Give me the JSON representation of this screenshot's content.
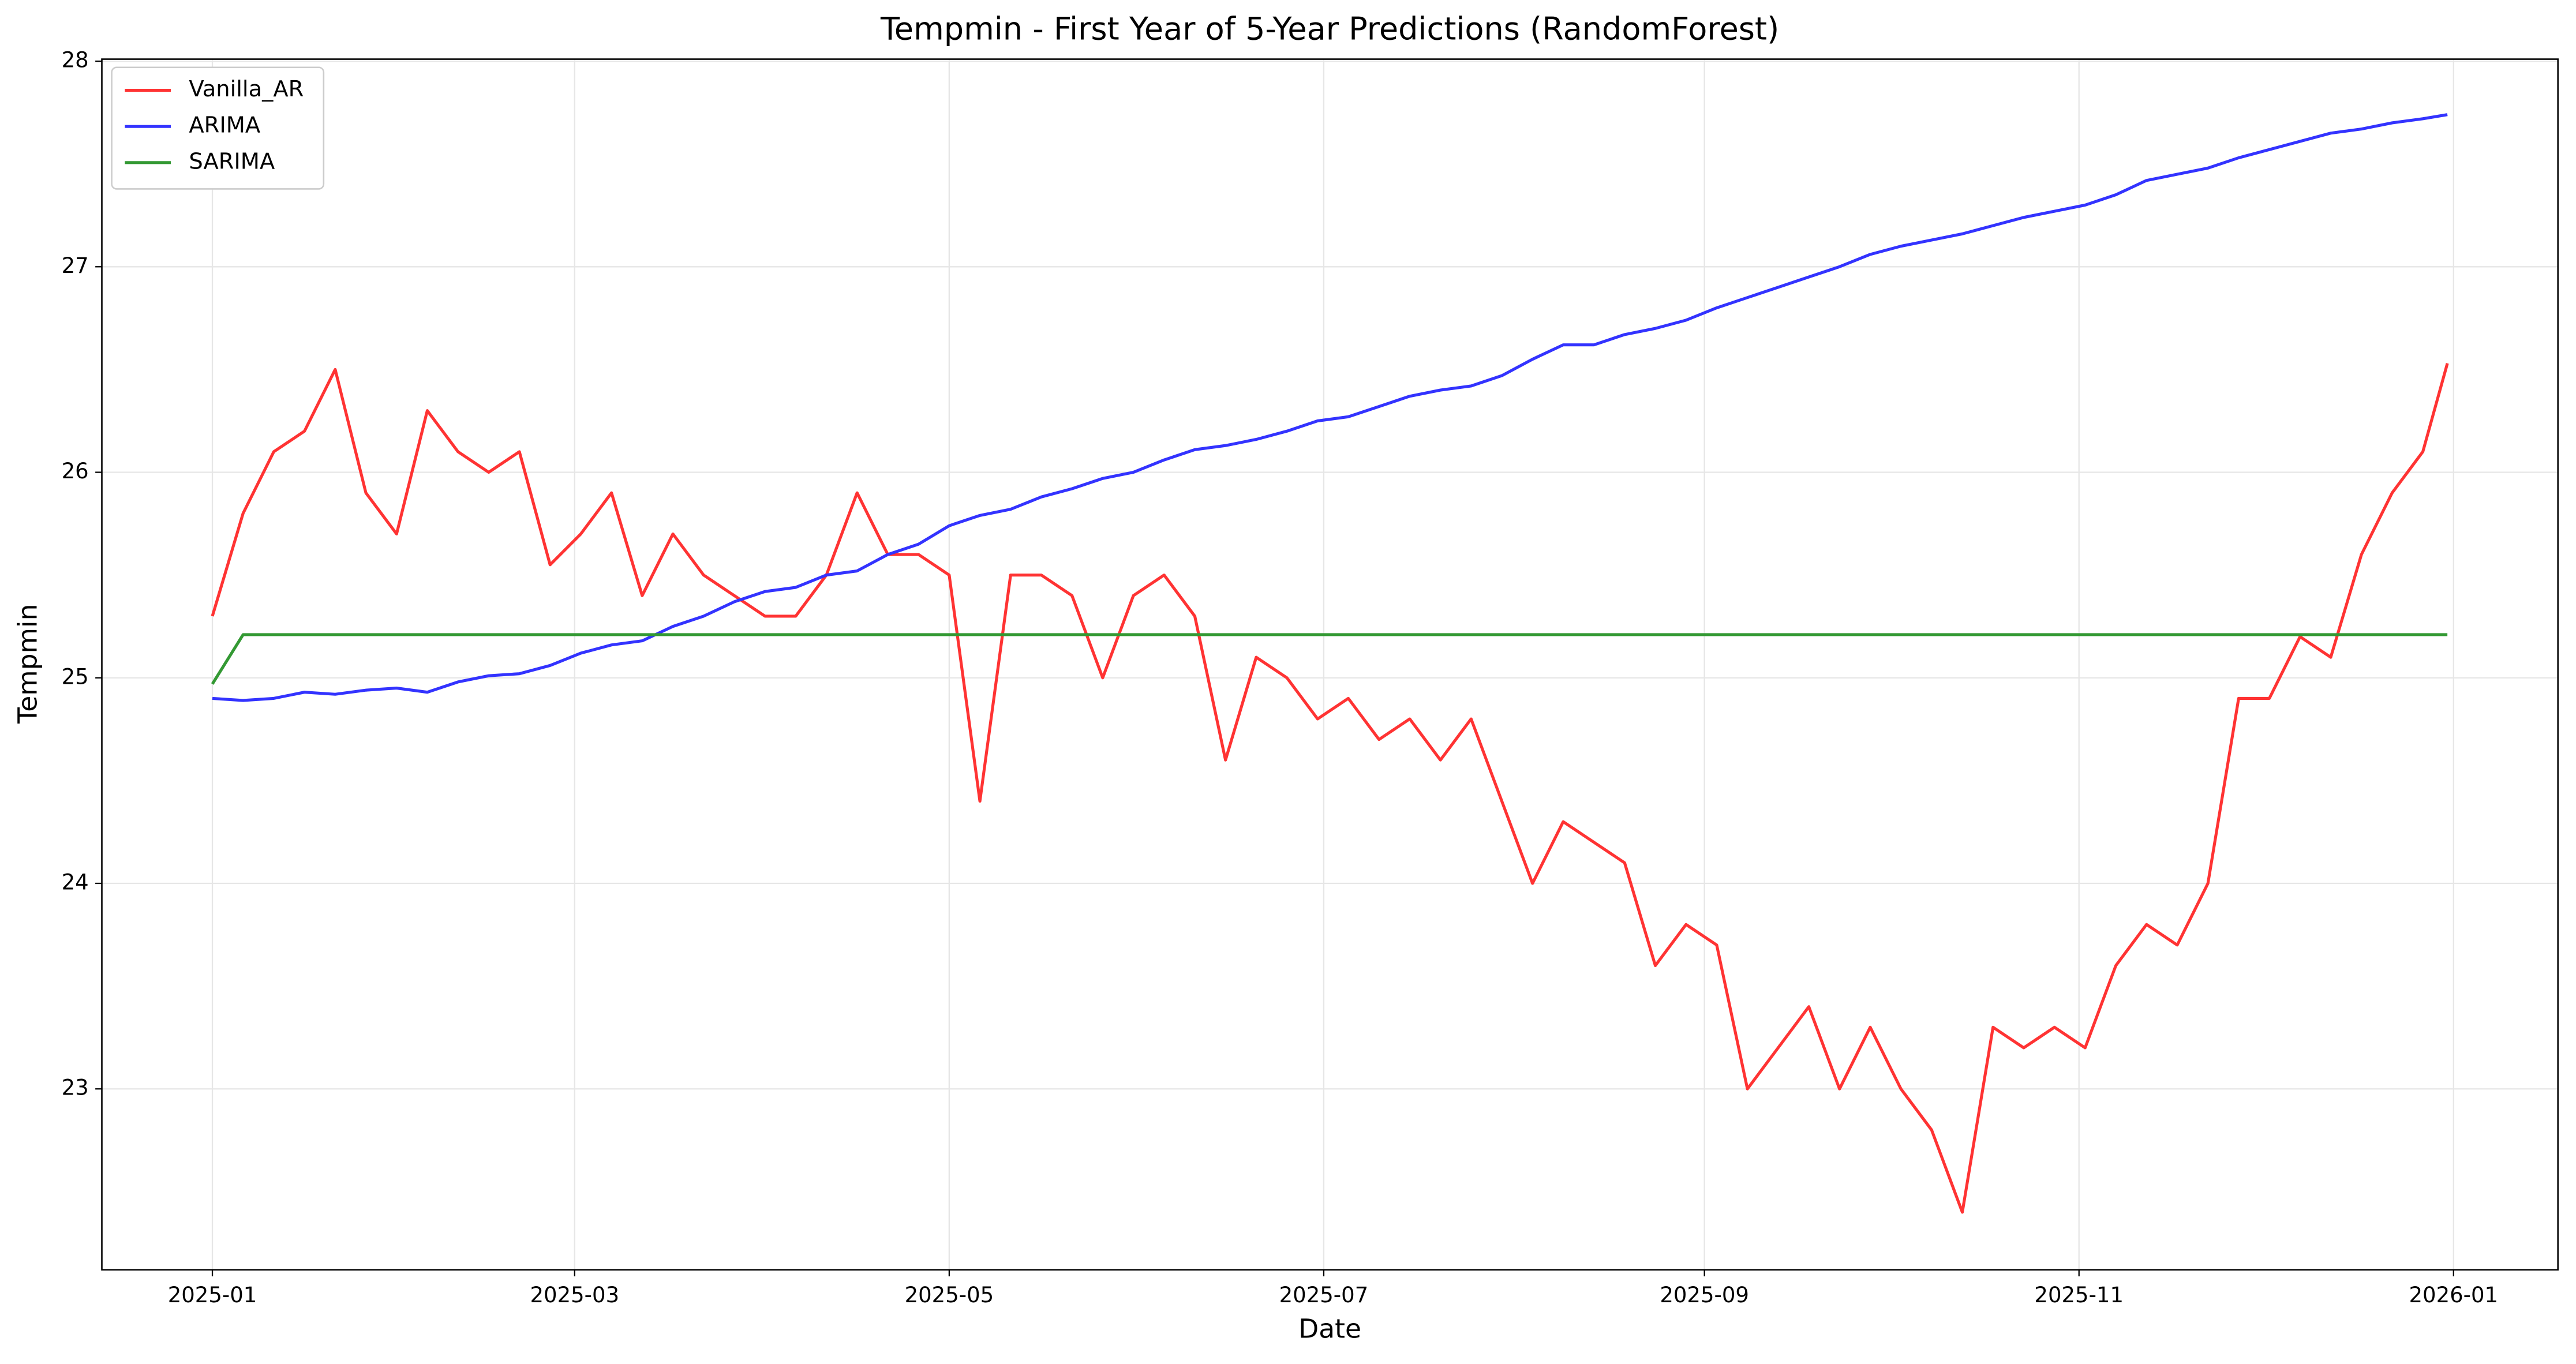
{
  "chart_data": {
    "type": "line",
    "title": "Tempmin - First Year of 5-Year Predictions (RandomForest)",
    "x_label": "Date",
    "y_label": "Tempmin",
    "x": [
      "2025-01-01",
      "2025-01-06",
      "2025-01-11",
      "2025-01-16",
      "2025-01-21",
      "2025-01-26",
      "2025-01-31",
      "2025-02-05",
      "2025-02-10",
      "2025-02-15",
      "2025-02-20",
      "2025-02-25",
      "2025-03-02",
      "2025-03-07",
      "2025-03-12",
      "2025-03-17",
      "2025-03-22",
      "2025-03-27",
      "2025-04-01",
      "2025-04-06",
      "2025-04-11",
      "2025-04-16",
      "2025-04-21",
      "2025-04-26",
      "2025-05-01",
      "2025-05-06",
      "2025-05-11",
      "2025-05-16",
      "2025-05-21",
      "2025-05-26",
      "2025-05-31",
      "2025-06-05",
      "2025-06-10",
      "2025-06-15",
      "2025-06-20",
      "2025-06-25",
      "2025-06-30",
      "2025-07-05",
      "2025-07-10",
      "2025-07-15",
      "2025-07-20",
      "2025-07-25",
      "2025-07-30",
      "2025-08-04",
      "2025-08-09",
      "2025-08-14",
      "2025-08-19",
      "2025-08-24",
      "2025-08-29",
      "2025-09-03",
      "2025-09-08",
      "2025-09-13",
      "2025-09-18",
      "2025-09-23",
      "2025-09-28",
      "2025-10-03",
      "2025-10-08",
      "2025-10-13",
      "2025-10-18",
      "2025-10-23",
      "2025-10-28",
      "2025-11-02",
      "2025-11-07",
      "2025-11-12",
      "2025-11-17",
      "2025-11-22",
      "2025-11-27",
      "2025-12-02",
      "2025-12-07",
      "2025-12-12",
      "2025-12-17",
      "2025-12-22",
      "2025-12-27",
      "2025-12-31"
    ],
    "series": [
      {
        "name": "Vanilla_AR",
        "color": "#ff3333",
        "values": [
          25.3,
          25.8,
          26.1,
          26.2,
          26.5,
          25.9,
          25.7,
          26.3,
          26.1,
          26.0,
          26.1,
          25.55,
          25.7,
          25.9,
          25.4,
          25.7,
          25.5,
          25.4,
          25.3,
          25.3,
          25.5,
          25.9,
          25.6,
          25.6,
          25.5,
          24.4,
          25.5,
          25.5,
          25.4,
          25.0,
          25.4,
          25.5,
          25.3,
          24.6,
          25.1,
          25.0,
          24.8,
          24.9,
          24.7,
          24.8,
          24.6,
          24.8,
          24.4,
          24.0,
          24.3,
          24.2,
          24.1,
          23.6,
          23.8,
          23.7,
          23.0,
          23.2,
          23.4,
          23.0,
          23.3,
          23.0,
          22.8,
          22.4,
          23.3,
          23.2,
          23.3,
          23.2,
          23.6,
          23.8,
          23.7,
          24.0,
          24.9,
          24.9,
          25.2,
          25.1,
          25.6,
          25.9,
          26.1,
          26.53
        ]
      },
      {
        "name": "ARIMA",
        "color": "#3333ff",
        "values": [
          24.9,
          24.89,
          24.9,
          24.93,
          24.92,
          24.94,
          24.95,
          24.93,
          24.98,
          25.01,
          25.02,
          25.06,
          25.12,
          25.16,
          25.18,
          25.25,
          25.3,
          25.37,
          25.42,
          25.44,
          25.5,
          25.52,
          25.6,
          25.65,
          25.74,
          25.79,
          25.82,
          25.88,
          25.92,
          25.97,
          26.0,
          26.06,
          26.11,
          26.13,
          26.16,
          26.2,
          26.25,
          26.27,
          26.32,
          26.37,
          26.4,
          26.42,
          26.47,
          26.55,
          26.62,
          26.62,
          26.67,
          26.7,
          26.74,
          26.8,
          26.85,
          26.9,
          26.95,
          27.0,
          27.06,
          27.1,
          27.13,
          27.16,
          27.2,
          27.24,
          27.27,
          27.3,
          27.35,
          27.42,
          27.45,
          27.48,
          27.53,
          27.57,
          27.61,
          27.65,
          27.67,
          27.7,
          27.72,
          27.74
        ]
      },
      {
        "name": "SARIMA",
        "color": "#339933",
        "values": [
          24.97,
          25.21,
          25.21,
          25.21,
          25.21,
          25.21,
          25.21,
          25.21,
          25.21,
          25.21,
          25.21,
          25.21,
          25.21,
          25.21,
          25.21,
          25.21,
          25.21,
          25.21,
          25.21,
          25.21,
          25.21,
          25.21,
          25.21,
          25.21,
          25.21,
          25.21,
          25.21,
          25.21,
          25.21,
          25.21,
          25.21,
          25.21,
          25.21,
          25.21,
          25.21,
          25.21,
          25.21,
          25.21,
          25.21,
          25.21,
          25.21,
          25.21,
          25.21,
          25.21,
          25.21,
          25.21,
          25.21,
          25.21,
          25.21,
          25.21,
          25.21,
          25.21,
          25.21,
          25.21,
          25.21,
          25.21,
          25.21,
          25.21,
          25.21,
          25.21,
          25.21,
          25.21,
          25.21,
          25.21,
          25.21,
          25.21,
          25.21,
          25.21,
          25.21,
          25.21,
          25.21,
          25.21,
          25.21,
          25.21
        ]
      }
    ],
    "xlim": [
      "2024-12-14",
      "2026-01-18"
    ],
    "xticks": [
      {
        "value": "2025-01-01",
        "label": "2025-01"
      },
      {
        "value": "2025-03-01",
        "label": "2025-03"
      },
      {
        "value": "2025-05-01",
        "label": "2025-05"
      },
      {
        "value": "2025-07-01",
        "label": "2025-07"
      },
      {
        "value": "2025-09-01",
        "label": "2025-09"
      },
      {
        "value": "2025-11-01",
        "label": "2025-11"
      },
      {
        "value": "2026-01-01",
        "label": "2026-01"
      }
    ],
    "ylim": [
      22.12,
      28.01
    ],
    "yticks": [
      23,
      24,
      25,
      26,
      27,
      28
    ],
    "grid": true,
    "legend": "upper left"
  }
}
